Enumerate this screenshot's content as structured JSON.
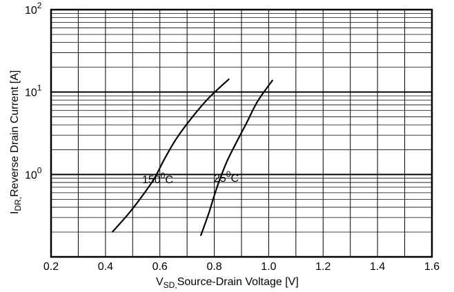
{
  "chart_data": {
    "type": "line",
    "x_scale": "linear",
    "y_scale": "log",
    "xlim": [
      0.2,
      1.6
    ],
    "ylim": [
      0.1,
      100
    ],
    "grid": true,
    "x_ticks": [
      "0.2",
      "0.4",
      "0.6",
      "0.8",
      "1.0",
      "1.2",
      "1.4",
      "1.6"
    ],
    "y_ticks": [
      {
        "base": "10",
        "exp": "0",
        "value": 1
      },
      {
        "base": "10",
        "exp": "1",
        "value": 10
      },
      {
        "base": "10",
        "exp": "2",
        "value": 100
      }
    ],
    "xlabel": {
      "main": "V",
      "sub": "SD,",
      "rest": "Source-Drain Voltage  [V]"
    },
    "ylabel": {
      "main": "I",
      "sub": "DR,",
      "rest": "Reverse Drain Current  [A]"
    },
    "series": [
      {
        "label_number": "150",
        "label_sup": "0",
        "label_unit": "C",
        "x": [
          0.425,
          0.48,
          0.53,
          0.58,
          0.615,
          0.66,
          0.72,
          0.78,
          0.855
        ],
        "y": [
          0.2,
          0.32,
          0.52,
          0.9,
          1.5,
          2.7,
          5.0,
          8.5,
          14.5
        ]
      },
      {
        "label_number": "25",
        "label_sup": "0",
        "label_unit": "C",
        "x": [
          0.75,
          0.78,
          0.81,
          0.845,
          0.88,
          0.92,
          0.96,
          1.015
        ],
        "y": [
          0.18,
          0.34,
          0.7,
          1.4,
          2.4,
          4.3,
          7.8,
          14.0
        ]
      }
    ]
  }
}
